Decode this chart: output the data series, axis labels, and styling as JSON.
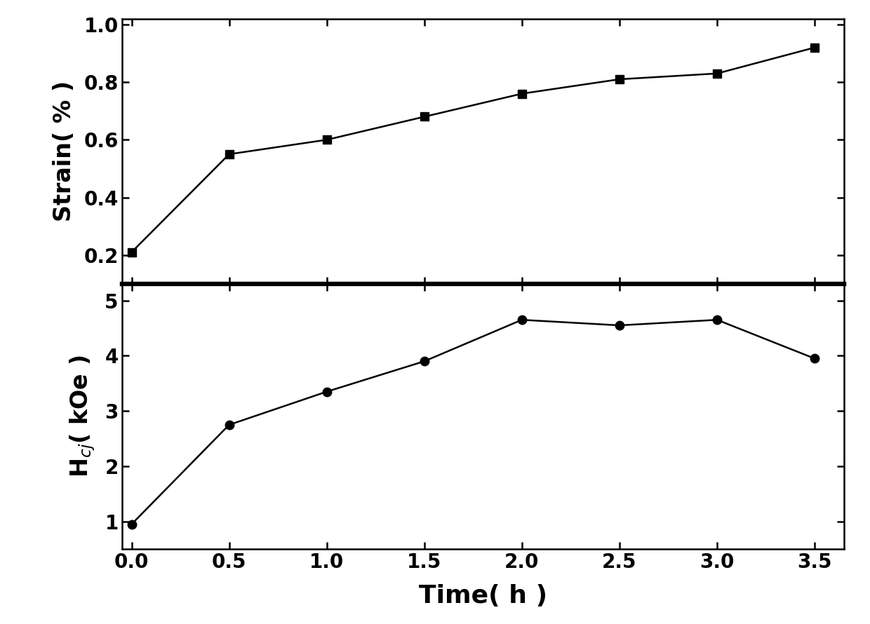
{
  "time": [
    0.0,
    0.5,
    1.0,
    1.5,
    2.0,
    2.5,
    3.0,
    3.5
  ],
  "strain": [
    0.21,
    0.55,
    0.6,
    0.68,
    0.76,
    0.81,
    0.83,
    0.92
  ],
  "hcj": [
    0.95,
    2.75,
    3.35,
    3.9,
    4.65,
    4.55,
    4.65,
    3.95
  ],
  "strain_ylim": [
    0.1,
    1.02
  ],
  "strain_yticks": [
    0.2,
    0.4,
    0.6,
    0.8,
    1.0
  ],
  "hcj_ylim": [
    0.5,
    5.3
  ],
  "hcj_yticks": [
    1,
    2,
    3,
    4,
    5
  ],
  "xlim": [
    -0.05,
    3.65
  ],
  "xticks": [
    0.0,
    0.5,
    1.0,
    1.5,
    2.0,
    2.5,
    3.0,
    3.5
  ],
  "xlabel": "Time( h )",
  "ylabel_top": "Strain( % )",
  "ylabel_bottom": "H$_{cj}$( kOe )",
  "line_color": "#000000",
  "marker_top": "s",
  "marker_bottom": "o",
  "marker_size": 9,
  "linewidth": 1.8,
  "background_color": "#ffffff",
  "tick_fontsize": 20,
  "label_fontsize": 24,
  "xlabel_fontsize": 26
}
